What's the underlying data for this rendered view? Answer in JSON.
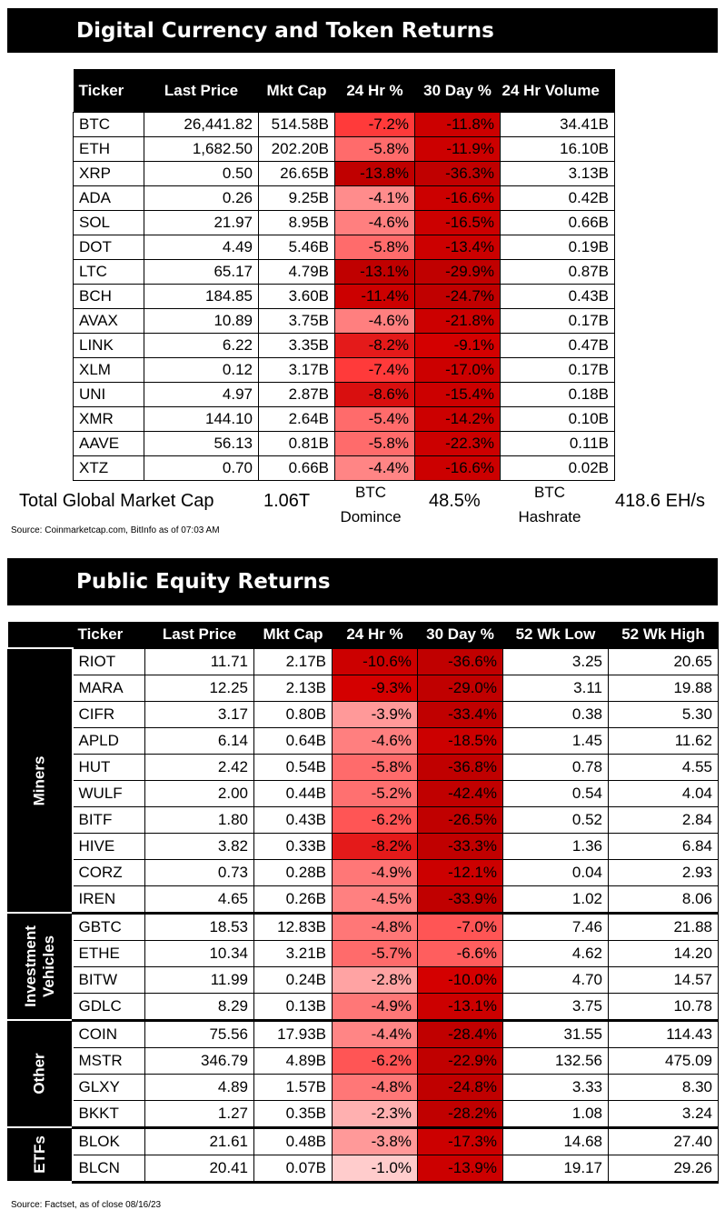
{
  "crypto": {
    "title": "Digital Currency and Token Returns",
    "headers": [
      "Ticker",
      "Last Price",
      "Mkt Cap",
      "24 Hr %",
      "30 Day %",
      "24 Hr Volume"
    ],
    "rows": [
      {
        "ticker": "BTC",
        "price": "26,441.82",
        "mcap": "514.58B",
        "d24": "-7.2%",
        "d30": "-11.8%",
        "vol": "34.41B",
        "c24": "#ff3a3a",
        "c30": "#cc0000"
      },
      {
        "ticker": "ETH",
        "price": "1,682.50",
        "mcap": "202.20B",
        "d24": "-5.8%",
        "d30": "-11.9%",
        "vol": "16.10B",
        "c24": "#ff6b6b",
        "c30": "#cc0000"
      },
      {
        "ticker": "XRP",
        "price": "0.50",
        "mcap": "26.65B",
        "d24": "-13.8%",
        "d30": "-36.3%",
        "vol": "3.13B",
        "c24": "#c00000",
        "c30": "#c00000"
      },
      {
        "ticker": "ADA",
        "price": "0.26",
        "mcap": "9.25B",
        "d24": "-4.1%",
        "d30": "-16.6%",
        "vol": "0.42B",
        "c24": "#ff8c8c",
        "c30": "#cc0000"
      },
      {
        "ticker": "SOL",
        "price": "21.97",
        "mcap": "8.95B",
        "d24": "-4.6%",
        "d30": "-16.5%",
        "vol": "0.66B",
        "c24": "#ff7f7f",
        "c30": "#cc0000"
      },
      {
        "ticker": "DOT",
        "price": "4.49",
        "mcap": "5.46B",
        "d24": "-5.8%",
        "d30": "-13.4%",
        "vol": "0.19B",
        "c24": "#ff6b6b",
        "c30": "#cc0000"
      },
      {
        "ticker": "LTC",
        "price": "65.17",
        "mcap": "4.79B",
        "d24": "-13.1%",
        "d30": "-29.9%",
        "vol": "0.87B",
        "c24": "#c00000",
        "c30": "#c00000"
      },
      {
        "ticker": "BCH",
        "price": "184.85",
        "mcap": "3.60B",
        "d24": "-11.4%",
        "d30": "-24.7%",
        "vol": "0.43B",
        "c24": "#cc0000",
        "c30": "#c00000"
      },
      {
        "ticker": "AVAX",
        "price": "10.89",
        "mcap": "3.75B",
        "d24": "-4.6%",
        "d30": "-21.8%",
        "vol": "0.17B",
        "c24": "#ff7f7f",
        "c30": "#cc0000"
      },
      {
        "ticker": "LINK",
        "price": "6.22",
        "mcap": "3.35B",
        "d24": "-8.2%",
        "d30": "-9.1%",
        "vol": "0.47B",
        "c24": "#e41a1a",
        "c30": "#d40000"
      },
      {
        "ticker": "XLM",
        "price": "0.12",
        "mcap": "3.17B",
        "d24": "-7.4%",
        "d30": "-17.0%",
        "vol": "0.17B",
        "c24": "#ff3a3a",
        "c30": "#cc0000"
      },
      {
        "ticker": "UNI",
        "price": "4.97",
        "mcap": "2.87B",
        "d24": "-8.6%",
        "d30": "-15.4%",
        "vol": "0.18B",
        "c24": "#d90f0f",
        "c30": "#cc0000"
      },
      {
        "ticker": "XMR",
        "price": "144.10",
        "mcap": "2.64B",
        "d24": "-5.4%",
        "d30": "-14.2%",
        "vol": "0.10B",
        "c24": "#ff6b6b",
        "c30": "#cc0000"
      },
      {
        "ticker": "AAVE",
        "price": "56.13",
        "mcap": "0.81B",
        "d24": "-5.8%",
        "d30": "-22.3%",
        "vol": "0.11B",
        "c24": "#ff6b6b",
        "c30": "#cc0000"
      },
      {
        "ticker": "XTZ",
        "price": "0.70",
        "mcap": "0.66B",
        "d24": "-4.4%",
        "d30": "-16.6%",
        "vol": "0.02B",
        "c24": "#ff8585",
        "c30": "#cc0000"
      }
    ],
    "summary": {
      "total_label": "Total Global Market Cap",
      "total_value": "1.06T",
      "dom_label_1": "BTC",
      "dom_label_2": "Domince",
      "dom_value": "48.5%",
      "hash_label_1": "BTC",
      "hash_label_2": "Hashrate",
      "hash_value": "418.6 EH/s"
    },
    "source": "Source: Coinmarketcap.com, BitInfo as of 07:03 AM"
  },
  "equity": {
    "title": "Public Equity Returns",
    "headers": [
      "Ticker",
      "Last Price",
      "Mkt Cap",
      "24 Hr %",
      "30 Day %",
      "52 Wk Low",
      "52 Wk High"
    ],
    "groups": [
      {
        "label_lines": [
          "Miners"
        ],
        "rows": [
          {
            "ticker": "RIOT",
            "price": "11.71",
            "mcap": "2.17B",
            "d24": "-10.6%",
            "d30": "-36.6%",
            "low": "3.25",
            "high": "20.65",
            "c24": "#cc0000",
            "c30": "#c00000"
          },
          {
            "ticker": "MARA",
            "price": "12.25",
            "mcap": "2.13B",
            "d24": "-9.3%",
            "d30": "-29.0%",
            "low": "3.11",
            "high": "19.88",
            "c24": "#d40000",
            "c30": "#c00000"
          },
          {
            "ticker": "CIFR",
            "price": "3.17",
            "mcap": "0.80B",
            "d24": "-3.9%",
            "d30": "-33.4%",
            "low": "0.38",
            "high": "5.30",
            "c24": "#ff9999",
            "c30": "#c00000"
          },
          {
            "ticker": "APLD",
            "price": "6.14",
            "mcap": "0.64B",
            "d24": "-4.6%",
            "d30": "-18.5%",
            "low": "1.45",
            "high": "11.62",
            "c24": "#ff7f7f",
            "c30": "#cc0000"
          },
          {
            "ticker": "HUT",
            "price": "2.42",
            "mcap": "0.54B",
            "d24": "-5.8%",
            "d30": "-36.8%",
            "low": "0.78",
            "high": "4.55",
            "c24": "#ff6b6b",
            "c30": "#c00000"
          },
          {
            "ticker": "WULF",
            "price": "2.00",
            "mcap": "0.44B",
            "d24": "-5.2%",
            "d30": "-42.4%",
            "low": "0.54",
            "high": "4.04",
            "c24": "#ff7070",
            "c30": "#c00000"
          },
          {
            "ticker": "BITF",
            "price": "1.80",
            "mcap": "0.43B",
            "d24": "-6.2%",
            "d30": "-26.5%",
            "low": "0.52",
            "high": "2.84",
            "c24": "#ff5555",
            "c30": "#c00000"
          },
          {
            "ticker": "HIVE",
            "price": "3.82",
            "mcap": "0.33B",
            "d24": "-8.2%",
            "d30": "-33.3%",
            "low": "1.36",
            "high": "6.84",
            "c24": "#e41a1a",
            "c30": "#c00000"
          },
          {
            "ticker": "CORZ",
            "price": "0.73",
            "mcap": "0.28B",
            "d24": "-4.9%",
            "d30": "-12.1%",
            "low": "0.04",
            "high": "2.93",
            "c24": "#ff7777",
            "c30": "#cc0000"
          },
          {
            "ticker": "IREN",
            "price": "4.65",
            "mcap": "0.26B",
            "d24": "-4.5%",
            "d30": "-33.9%",
            "low": "1.02",
            "high": "8.06",
            "c24": "#ff8080",
            "c30": "#c00000"
          }
        ]
      },
      {
        "label_lines": [
          "Investment",
          "Vehicles"
        ],
        "rows": [
          {
            "ticker": "GBTC",
            "price": "18.53",
            "mcap": "12.83B",
            "d24": "-4.8%",
            "d30": "-7.0%",
            "low": "7.46",
            "high": "21.88",
            "c24": "#ff7777",
            "c30": "#ff5555"
          },
          {
            "ticker": "ETHE",
            "price": "10.34",
            "mcap": "3.21B",
            "d24": "-5.7%",
            "d30": "-6.6%",
            "low": "4.62",
            "high": "14.20",
            "c24": "#ff6b6b",
            "c30": "#ff5e5e"
          },
          {
            "ticker": "BITW",
            "price": "11.99",
            "mcap": "0.24B",
            "d24": "-2.8%",
            "d30": "-10.0%",
            "low": "4.70",
            "high": "14.57",
            "c24": "#ffa3a3",
            "c30": "#d40000"
          },
          {
            "ticker": "GDLC",
            "price": "8.29",
            "mcap": "0.13B",
            "d24": "-4.9%",
            "d30": "-13.1%",
            "low": "3.75",
            "high": "10.78",
            "c24": "#ff7777",
            "c30": "#cc0000"
          }
        ]
      },
      {
        "label_lines": [
          "Other"
        ],
        "rows": [
          {
            "ticker": "COIN",
            "price": "75.56",
            "mcap": "17.93B",
            "d24": "-4.4%",
            "d30": "-28.4%",
            "low": "31.55",
            "high": "114.43",
            "c24": "#ff8585",
            "c30": "#c00000"
          },
          {
            "ticker": "MSTR",
            "price": "346.79",
            "mcap": "4.89B",
            "d24": "-6.2%",
            "d30": "-22.9%",
            "low": "132.56",
            "high": "475.09",
            "c24": "#ff5555",
            "c30": "#c00000"
          },
          {
            "ticker": "GLXY",
            "price": "4.89",
            "mcap": "1.57B",
            "d24": "-4.8%",
            "d30": "-24.8%",
            "low": "3.33",
            "high": "8.30",
            "c24": "#ff7777",
            "c30": "#c00000"
          },
          {
            "ticker": "BKKT",
            "price": "1.27",
            "mcap": "0.35B",
            "d24": "-2.3%",
            "d30": "-28.2%",
            "low": "1.08",
            "high": "3.24",
            "c24": "#ffb0b0",
            "c30": "#c00000"
          }
        ]
      },
      {
        "label_lines": [
          "ETFs"
        ],
        "rows": [
          {
            "ticker": "BLOK",
            "price": "21.61",
            "mcap": "0.48B",
            "d24": "-3.8%",
            "d30": "-17.3%",
            "low": "14.68",
            "high": "27.40",
            "c24": "#ff9999",
            "c30": "#cc0000"
          },
          {
            "ticker": "BLCN",
            "price": "20.41",
            "mcap": "0.07B",
            "d24": "-1.0%",
            "d30": "-13.9%",
            "low": "19.17",
            "high": "29.26",
            "c24": "#ffcccc",
            "c30": "#cc0000"
          }
        ]
      }
    ],
    "source": "Source: Factset, as of close 08/16/23"
  }
}
